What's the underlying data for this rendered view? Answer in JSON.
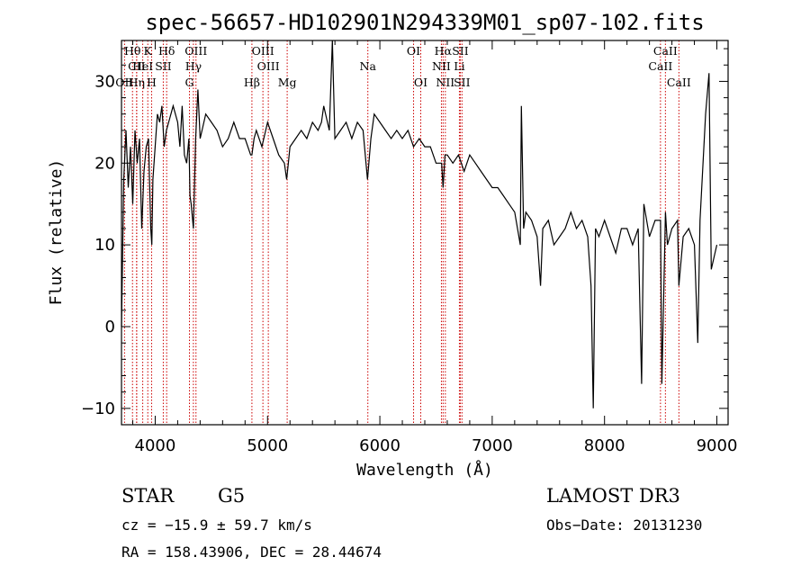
{
  "chart_data": {
    "type": "line",
    "title": "spec-56657-HD102901N294339M01_sp07-102.fits",
    "xlabel": "Wavelength (Å)",
    "ylabel": "Flux (relative)",
    "xlim": [
      3700,
      9100
    ],
    "ylim": [
      -12,
      35
    ],
    "xticks": [
      4000,
      5000,
      6000,
      7000,
      8000,
      9000
    ],
    "yticks": [
      -10,
      0,
      10,
      20,
      30
    ],
    "line_color": "#000000",
    "marker_color": "#cc0000",
    "series": [
      {
        "name": "flux",
        "x": [
          3700,
          3720,
          3740,
          3760,
          3780,
          3800,
          3820,
          3840,
          3860,
          3880,
          3900,
          3920,
          3940,
          3960,
          3970,
          3980,
          4000,
          4020,
          4040,
          4060,
          4080,
          4100,
          4120,
          4140,
          4160,
          4180,
          4200,
          4220,
          4240,
          4260,
          4280,
          4300,
          4310,
          4320,
          4340,
          4360,
          4380,
          4400,
          4450,
          4500,
          4550,
          4600,
          4650,
          4700,
          4750,
          4800,
          4850,
          4861,
          4880,
          4900,
          4950,
          5000,
          5050,
          5100,
          5150,
          5170,
          5185,
          5200,
          5250,
          5300,
          5350,
          5400,
          5450,
          5480,
          5500,
          5550,
          5577,
          5600,
          5650,
          5700,
          5750,
          5800,
          5850,
          5890,
          5896,
          5920,
          5950,
          6000,
          6050,
          6100,
          6150,
          6200,
          6250,
          6300,
          6350,
          6400,
          6450,
          6500,
          6550,
          6563,
          6580,
          6600,
          6650,
          6700,
          6750,
          6800,
          6850,
          6900,
          6950,
          7000,
          7050,
          7100,
          7150,
          7200,
          7250,
          7260,
          7280,
          7300,
          7350,
          7400,
          7430,
          7450,
          7500,
          7550,
          7600,
          7650,
          7700,
          7750,
          7800,
          7850,
          7880,
          7900,
          7920,
          7950,
          8000,
          8050,
          8100,
          8150,
          8200,
          8250,
          8300,
          8330,
          8350,
          8400,
          8450,
          8498,
          8510,
          8542,
          8560,
          8600,
          8650,
          8662,
          8700,
          8750,
          8800,
          8830,
          8850,
          8900,
          8930,
          8950,
          9000
        ],
        "y": [
          0,
          18,
          24,
          17,
          22,
          15,
          24,
          20,
          23,
          12,
          19,
          22,
          23,
          12,
          10,
          18,
          22,
          26,
          25,
          27,
          22,
          24,
          25,
          26,
          27,
          26,
          25,
          22,
          27,
          21,
          20,
          23,
          16,
          15,
          12,
          23,
          29,
          23,
          26,
          25,
          24,
          22,
          23,
          25,
          23,
          23,
          21,
          21,
          23,
          24,
          22,
          25,
          23,
          21,
          20,
          18,
          20,
          22,
          23,
          24,
          23,
          25,
          24,
          25,
          27,
          24,
          35,
          23,
          24,
          25,
          23,
          25,
          24,
          18,
          19,
          23,
          26,
          25,
          24,
          23,
          24,
          23,
          24,
          22,
          23,
          22,
          22,
          20,
          20,
          17,
          21,
          21,
          20,
          21,
          19,
          21,
          20,
          19,
          18,
          17,
          17,
          16,
          15,
          14,
          10,
          27,
          12,
          14,
          13,
          11,
          5,
          12,
          13,
          10,
          11,
          12,
          14,
          12,
          13,
          11,
          5,
          -10,
          12,
          11,
          13,
          11,
          9,
          12,
          12,
          10,
          12,
          -7,
          15,
          11,
          13,
          13,
          -7,
          14,
          10,
          12,
          13,
          5,
          11,
          12,
          10,
          -2,
          13,
          26,
          31,
          7,
          10
        ]
      }
    ],
    "spectral_lines": [
      {
        "name": "Hθ",
        "wavelength": 3798,
        "row": 1
      },
      {
        "name": "CII",
        "wavelength": 3835,
        "row": 2
      },
      {
        "name": "OII",
        "wavelength": 3727,
        "row": 3
      },
      {
        "name": "HeI",
        "wavelength": 3889,
        "row": 2
      },
      {
        "name": "Hη",
        "wavelength": 3835,
        "row": 3
      },
      {
        "name": "K",
        "wavelength": 3934,
        "row": 1
      },
      {
        "name": "SII",
        "wavelength": 4072,
        "row": 2
      },
      {
        "name": "H",
        "wavelength": 3968,
        "row": 3
      },
      {
        "name": "Hδ",
        "wavelength": 4102,
        "row": 1
      },
      {
        "name": "OIII",
        "wavelength": 4363,
        "row": 1
      },
      {
        "name": "Hγ",
        "wavelength": 4340,
        "row": 2
      },
      {
        "name": "G",
        "wavelength": 4305,
        "row": 3
      },
      {
        "name": "OIII",
        "wavelength": 4959,
        "row": 1
      },
      {
        "name": "OIII",
        "wavelength": 5007,
        "row": 2
      },
      {
        "name": "Hβ",
        "wavelength": 4861,
        "row": 3
      },
      {
        "name": "Mg",
        "wavelength": 5175,
        "row": 3
      },
      {
        "name": "Na",
        "wavelength": 5893,
        "row": 2
      },
      {
        "name": "OI",
        "wavelength": 6300,
        "row": 1
      },
      {
        "name": "OI",
        "wavelength": 6364,
        "row": 3
      },
      {
        "name": "Hα",
        "wavelength": 6563,
        "row": 1
      },
      {
        "name": "NII",
        "wavelength": 6548,
        "row": 2
      },
      {
        "name": "NII",
        "wavelength": 6583,
        "row": 3
      },
      {
        "name": "SII",
        "wavelength": 6716,
        "row": 1
      },
      {
        "name": "Li",
        "wavelength": 6708,
        "row": 2
      },
      {
        "name": "SII",
        "wavelength": 6731,
        "row": 3
      },
      {
        "name": "CaII",
        "wavelength": 8542,
        "row": 1
      },
      {
        "name": "CaII",
        "wavelength": 8498,
        "row": 2
      },
      {
        "name": "CaII",
        "wavelength": 8662,
        "row": 3
      }
    ]
  },
  "info": {
    "object_class": "STAR",
    "subclass": "G5",
    "survey": "LAMOST DR3",
    "redshift": "cz = −15.9 ± 59.7 km/s",
    "obs_date": "Obs−Date: 20131230",
    "coords": "RA = 158.43906, DEC =  28.44674"
  }
}
